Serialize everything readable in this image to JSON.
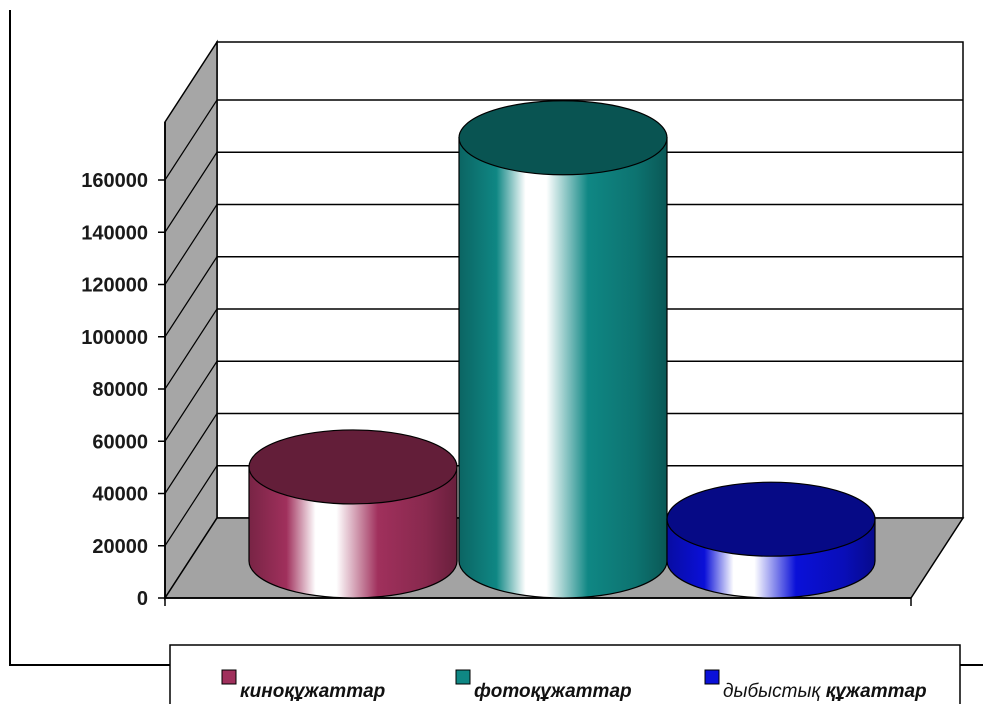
{
  "chart_data": {
    "type": "bar",
    "style": "3d-cylinder",
    "categories": [
      "киноқұжаттар",
      "фотоқұжаттар",
      "дыбыстық құжаттар"
    ],
    "values": [
      36000,
      162000,
      16000
    ],
    "colors": [
      "#a0305c",
      "#0f8784",
      "#0a10d8"
    ],
    "ylim": [
      0,
      160000
    ],
    "yticks": [
      "0",
      "20000",
      "40000",
      "60000",
      "80000",
      "100000",
      "120000",
      "140000",
      "160000"
    ],
    "grid": true,
    "legend": {
      "position": "bottom",
      "entries": [
        {
          "label": "киноқұжаттар",
          "color": "#a0305c",
          "bold": true
        },
        {
          "label": "фотоқұжаттар",
          "color": "#0f8784",
          "bold": true
        },
        {
          "label": "дыбыстық ",
          "bold_part": "құжаттар",
          "color": "#0a10d8",
          "bold": false
        }
      ]
    }
  }
}
